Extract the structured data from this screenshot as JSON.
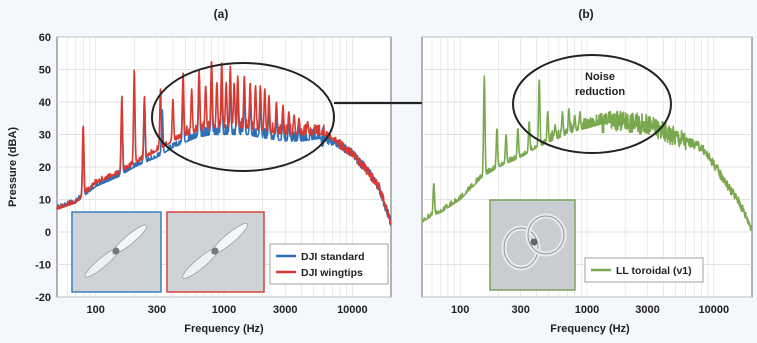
{
  "chart_data": [
    {
      "panel_label": "(a)",
      "type": "line",
      "xlabel": "Frequency (Hz)",
      "ylabel": "Pressure (dBA)",
      "x_scale": "log",
      "xlim": [
        50,
        20000
      ],
      "ylim": [
        -20,
        60
      ],
      "x_ticks": [
        100,
        300,
        1000,
        3000,
        10000
      ],
      "x_tick_labels": [
        "100",
        "300",
        "1000",
        "3000",
        "10000"
      ],
      "y_ticks": [
        -20,
        -10,
        0,
        10,
        20,
        30,
        40,
        50,
        60
      ],
      "y_tick_labels": [
        "-20",
        "-10",
        "0",
        "10",
        "20",
        "30",
        "40",
        "50",
        "60"
      ],
      "grid": true,
      "legend_position": "bottom-right",
      "annotation": {
        "type": "ellipse",
        "center": [
          1500,
          37
        ],
        "label": ""
      },
      "insets": [
        {
          "name": "dji-standard-propeller",
          "border_color": "#3b7fc4"
        },
        {
          "name": "dji-wingtips-propeller",
          "border_color": "#d9453b"
        }
      ],
      "series": [
        {
          "name": "DJI standard",
          "color": "#2f6fb5",
          "x": [
            50,
            70,
            100,
            150,
            200,
            300,
            400,
            600,
            800,
            1000,
            1500,
            2000,
            3000,
            4000,
            6000,
            8000,
            10000,
            13000,
            16000,
            20000
          ],
          "y": [
            7,
            9,
            14,
            17,
            20,
            23,
            26,
            29,
            30,
            30,
            30,
            29,
            28,
            28,
            29,
            27,
            24,
            19,
            14,
            3
          ],
          "peaks": [
            [
              80,
              30
            ],
            [
              160,
              39
            ],
            [
              240,
              40
            ],
            [
              330,
              38
            ],
            [
              480,
              44
            ],
            [
              640,
              48
            ],
            [
              800,
              48
            ],
            [
              960,
              45
            ],
            [
              1120,
              44
            ],
            [
              1280,
              43
            ],
            [
              1440,
              42
            ],
            [
              1600,
              41
            ],
            [
              1920,
              40
            ],
            [
              2240,
              38
            ],
            [
              2560,
              36
            ],
            [
              2880,
              35
            ],
            [
              3200,
              34
            ],
            [
              3840,
              33
            ]
          ]
        },
        {
          "name": "DJI wingtips",
          "color": "#d63a31",
          "x": [
            50,
            70,
            100,
            150,
            200,
            300,
            400,
            600,
            800,
            1000,
            1500,
            2000,
            3000,
            4000,
            6000,
            8000,
            10000,
            13000,
            16000,
            20000
          ],
          "y": [
            7,
            9,
            15,
            18,
            21,
            25,
            28,
            31,
            32,
            32,
            32,
            31,
            30,
            30,
            30,
            27,
            24,
            19,
            14,
            3
          ],
          "peaks": [
            [
              80,
              33
            ],
            [
              160,
              42
            ],
            [
              200,
              50
            ],
            [
              240,
              42
            ],
            [
              320,
              44
            ],
            [
              400,
              41
            ],
            [
              480,
              49
            ],
            [
              560,
              44
            ],
            [
              640,
              50
            ],
            [
              720,
              45
            ],
            [
              800,
              53
            ],
            [
              880,
              46
            ],
            [
              960,
              52
            ],
            [
              1040,
              46
            ],
            [
              1120,
              51
            ],
            [
              1200,
              46
            ],
            [
              1280,
              48
            ],
            [
              1440,
              48
            ],
            [
              1600,
              46
            ],
            [
              1760,
              45
            ],
            [
              1920,
              45
            ],
            [
              2080,
              44
            ],
            [
              2240,
              42
            ],
            [
              2560,
              40
            ],
            [
              2880,
              39
            ],
            [
              3200,
              37
            ],
            [
              3520,
              36
            ],
            [
              3840,
              35
            ],
            [
              4480,
              34
            ],
            [
              5120,
              33
            ]
          ]
        }
      ],
      "legend": [
        "DJI standard",
        "DJI wingtips"
      ]
    },
    {
      "panel_label": "(b)",
      "type": "line",
      "xlabel": "Frequency (Hz)",
      "ylabel": "",
      "x_scale": "log",
      "xlim": [
        50,
        20000
      ],
      "ylim": [
        -20,
        60
      ],
      "x_ticks": [
        100,
        300,
        1000,
        3000,
        10000
      ],
      "x_tick_labels": [
        "100",
        "300",
        "1000",
        "3000",
        "10000"
      ],
      "y_ticks": [
        -20,
        -10,
        0,
        10,
        20,
        30,
        40,
        50,
        60
      ],
      "grid": true,
      "legend_position": "bottom-right",
      "annotation": {
        "type": "ellipse",
        "center": [
          1500,
          38
        ],
        "label_lines": [
          "Noise",
          "reduction"
        ]
      },
      "insets": [
        {
          "name": "toroidal-propeller",
          "border_color": "#7aa35a"
        }
      ],
      "series": [
        {
          "name": "LL toroidal (v1)",
          "color": "#79a84e",
          "x": [
            50,
            60,
            70,
            100,
            150,
            200,
            300,
            400,
            600,
            800,
            1000,
            1500,
            2000,
            3000,
            4000,
            6000,
            8000,
            10000,
            13000,
            16000,
            20000
          ],
          "y": [
            3,
            5,
            6,
            10,
            17,
            20,
            23,
            26,
            29,
            31,
            32,
            34,
            34,
            33,
            31,
            28,
            26,
            21,
            14,
            9,
            1
          ],
          "peaks": [
            [
              62,
              15
            ],
            [
              155,
              48
            ],
            [
              195,
              32
            ],
            [
              230,
              30
            ],
            [
              285,
              32
            ],
            [
              350,
              34
            ],
            [
              420,
              47
            ],
            [
              490,
              37
            ],
            [
              560,
              33
            ],
            [
              640,
              37
            ],
            [
              720,
              38
            ],
            [
              800,
              36
            ],
            [
              880,
              37
            ]
          ]
        }
      ],
      "legend": [
        "LL toroidal (v1)"
      ]
    }
  ]
}
